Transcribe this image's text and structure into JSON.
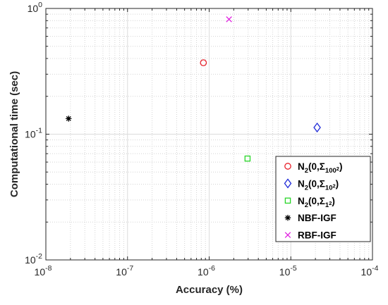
{
  "chart_data": {
    "type": "scatter",
    "title": "",
    "xlabel": "Accuracy (%)",
    "ylabel": "Computational time (sec)",
    "xscale": "log",
    "yscale": "log",
    "xlim": [
      1e-08,
      0.0001
    ],
    "ylim": [
      0.01,
      1
    ],
    "x_ticks": [
      {
        "base": "10",
        "exp": "-8"
      },
      {
        "base": "10",
        "exp": "-7"
      },
      {
        "base": "10",
        "exp": "-6"
      },
      {
        "base": "10",
        "exp": "-5"
      },
      {
        "base": "10",
        "exp": "-4"
      }
    ],
    "y_ticks": [
      {
        "base": "10",
        "exp": "-2"
      },
      {
        "base": "10",
        "exp": "-1"
      },
      {
        "base": "10",
        "exp": "0"
      }
    ],
    "grid": true,
    "legend_position": "bottom-right",
    "series": [
      {
        "label": {
          "main": "N",
          "sub1": "2",
          "mid": "(0,Σ",
          "sub2": "100",
          "sub2sup": "2",
          "tail": ")"
        },
        "marker": "circle",
        "color": "#e8202a",
        "x": 8.5e-07,
        "y": 0.37
      },
      {
        "label": {
          "main": "N",
          "sub1": "2",
          "mid": "(0,Σ",
          "sub2": "10",
          "sub2sup": "2",
          "tail": ")"
        },
        "marker": "diamond",
        "color": "#1f2ad8",
        "x": 2.1e-05,
        "y": 0.113
      },
      {
        "label": {
          "main": "N",
          "sub1": "2",
          "mid": "(0,Σ",
          "sub2": "1",
          "sub2sup": "2",
          "tail": ")"
        },
        "marker": "square",
        "color": "#29d629",
        "x": 2.95e-06,
        "y": 0.064
      },
      {
        "label": {
          "main": "NBF-IGF"
        },
        "marker": "asterisk",
        "color": "#000000",
        "x": 1.9e-08,
        "y": 0.133
      },
      {
        "label": {
          "main": "RBF-IGF"
        },
        "marker": "x",
        "color": "#e020e0",
        "x": 1.75e-06,
        "y": 0.82
      }
    ]
  }
}
